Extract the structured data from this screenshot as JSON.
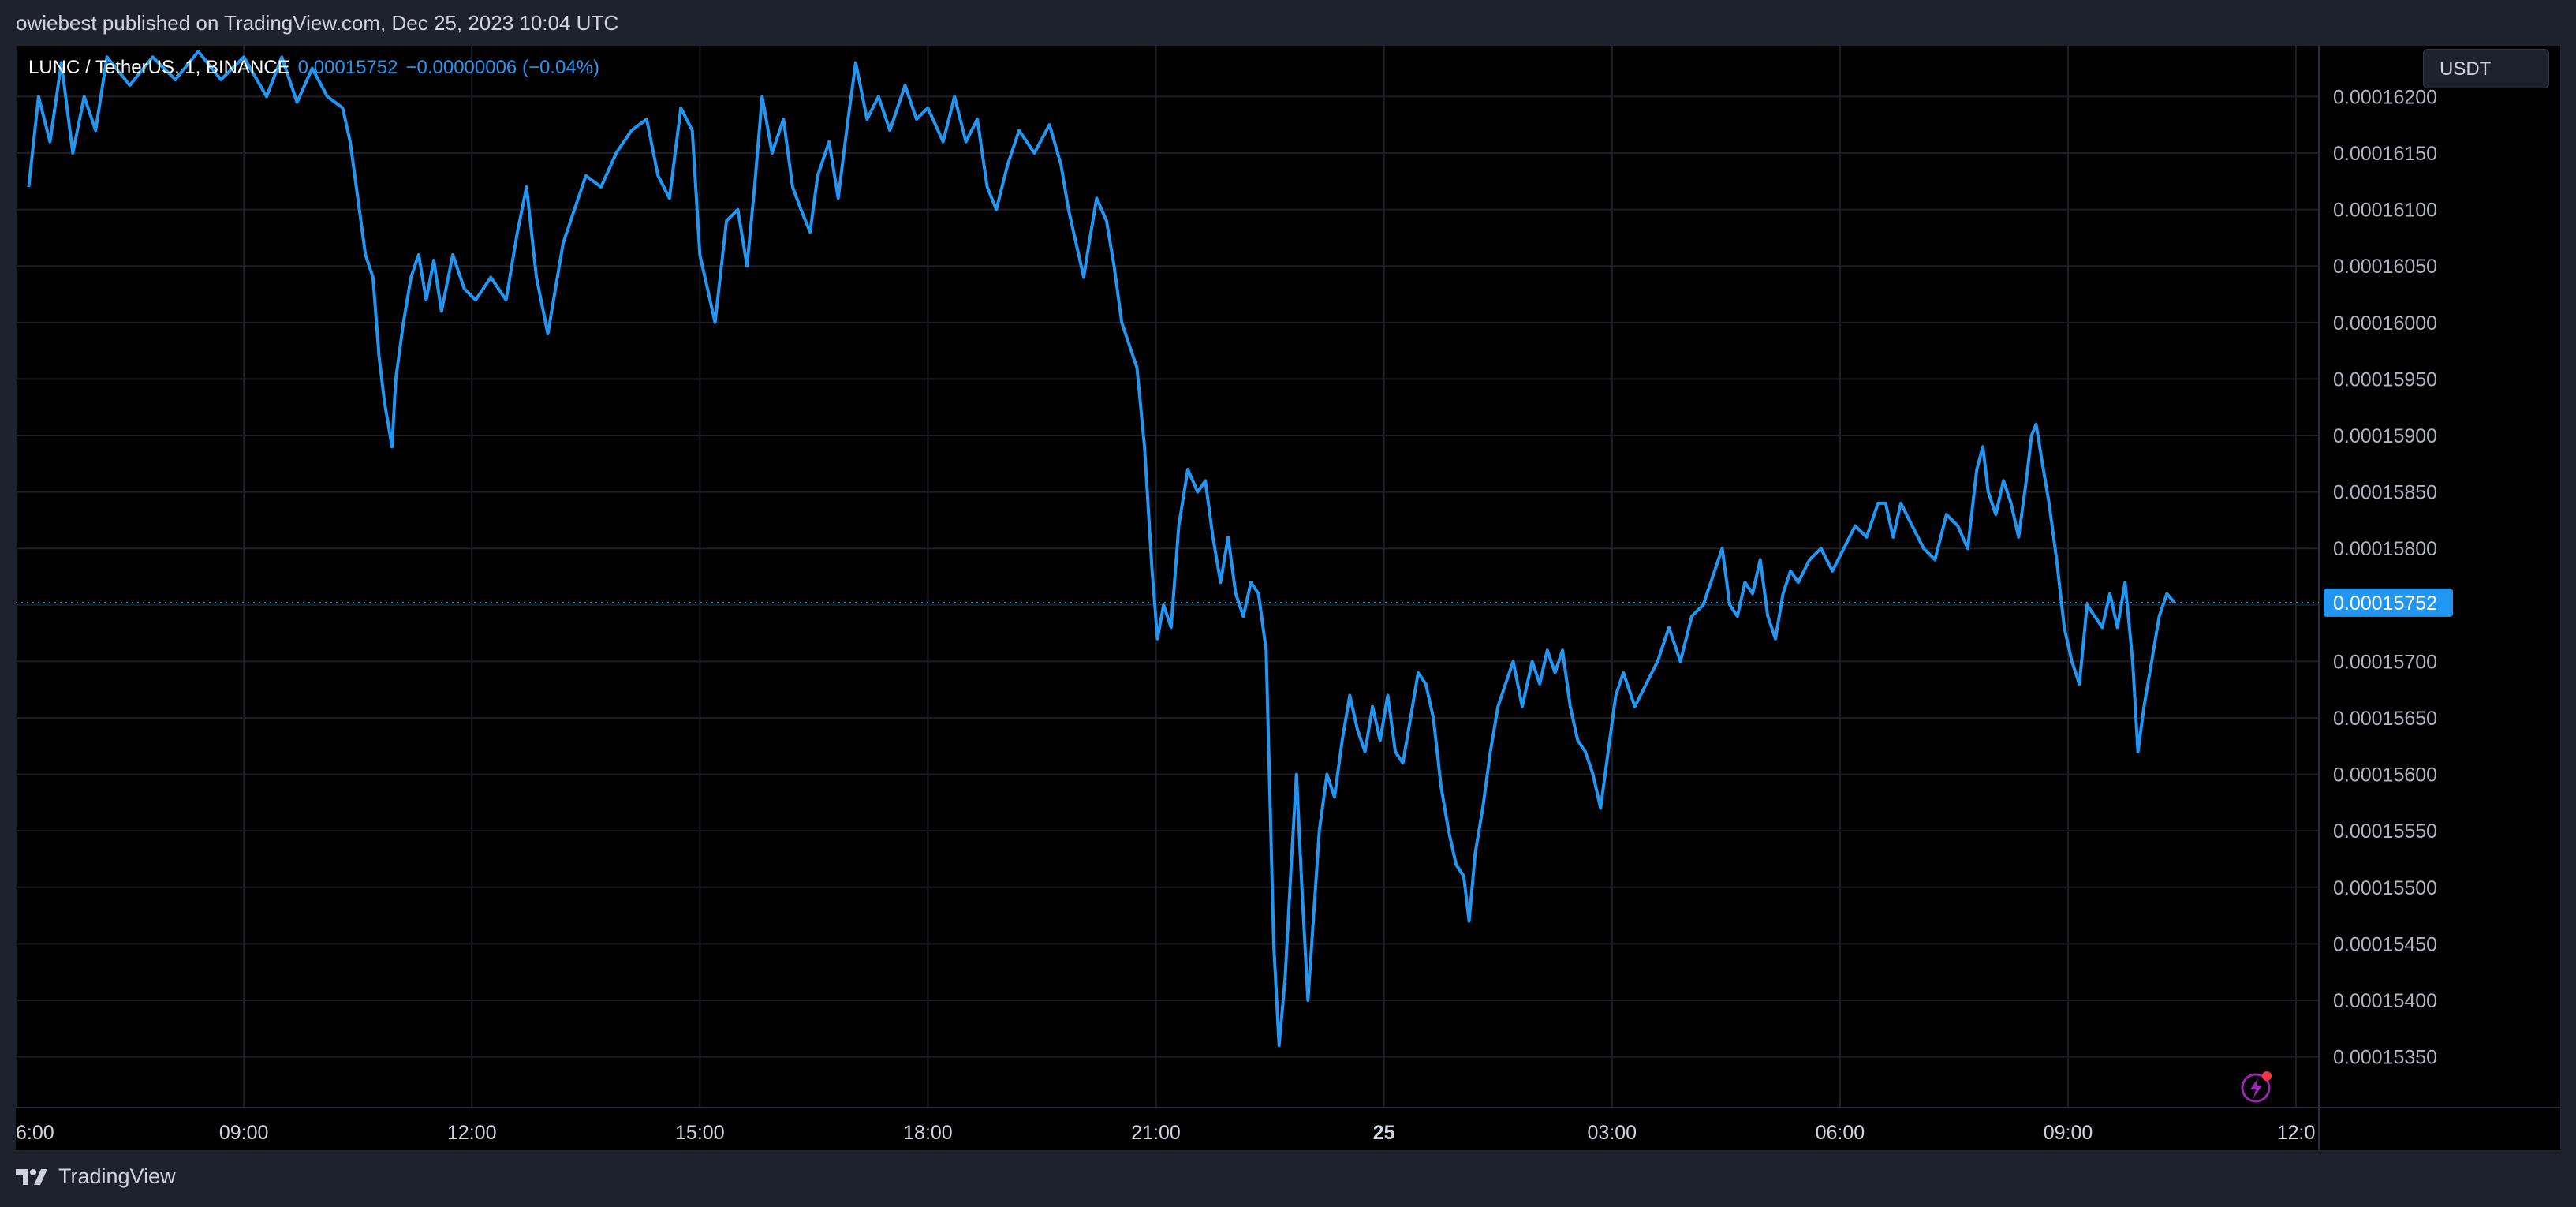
{
  "header": {
    "published_line": "owiebest published on TradingView.com, Dec 25, 2023 10:04 UTC"
  },
  "legend": {
    "symbol": "LUNC / TetherUS, 1, BINANCE",
    "last": "0.00015752",
    "change": "−0.00000006 (−0.04%)"
  },
  "currency_button": {
    "label": "USDT"
  },
  "footer": {
    "brand": "TradingView"
  },
  "icons": {
    "brand_logo": "tradingview-logo-icon",
    "alert": "lightning-bolt-icon"
  },
  "colors": {
    "line": "#2196f3",
    "background": "#000000",
    "grid": "#1c1f26",
    "last_badge": "#2196f3"
  },
  "chart_data": {
    "type": "line",
    "title": "",
    "xlabel": "",
    "ylabel": "",
    "x_ticks": [
      {
        "t": 0,
        "label": "6:00"
      },
      {
        "t": 3,
        "label": "09:00"
      },
      {
        "t": 6,
        "label": "12:00"
      },
      {
        "t": 9,
        "label": "15:00"
      },
      {
        "t": 12,
        "label": "18:00"
      },
      {
        "t": 15,
        "label": "21:00"
      },
      {
        "t": 18,
        "label": "25",
        "bold": true
      },
      {
        "t": 21,
        "label": "03:00"
      },
      {
        "t": 24,
        "label": "06:00"
      },
      {
        "t": 27,
        "label": "09:00"
      },
      {
        "t": 30,
        "label": "12:0"
      }
    ],
    "x_unit": "hours since Dec 24 06:00 UTC",
    "xlim": [
      0,
      30.3
    ],
    "ylim": [
      0.00015305,
      0.00016245
    ],
    "y_ticks": [
      "0.00016200",
      "0.00016150",
      "0.00016100",
      "0.00016050",
      "0.00016000",
      "0.00015950",
      "0.00015900",
      "0.00015850",
      "0.00015800",
      "0.00015750",
      "0.00015700",
      "0.00015650",
      "0.00015600",
      "0.00015550",
      "0.00015500",
      "0.00015450",
      "0.00015400",
      "0.00015350"
    ],
    "last_price": 0.00015752,
    "last_price_label": "0.00015752",
    "grid": true,
    "series": [
      {
        "name": "",
        "points": [
          [
            0.17,
            0.0001612
          ],
          [
            0.3,
            0.000162
          ],
          [
            0.45,
            0.0001616
          ],
          [
            0.6,
            0.0001623
          ],
          [
            0.75,
            0.0001615
          ],
          [
            0.9,
            0.000162
          ],
          [
            1.05,
            0.0001617
          ],
          [
            1.2,
            0.00016235
          ],
          [
            1.5,
            0.0001621
          ],
          [
            1.8,
            0.00016235
          ],
          [
            2.1,
            0.00016215
          ],
          [
            2.4,
            0.0001624
          ],
          [
            2.7,
            0.00016215
          ],
          [
            3.0,
            0.00016235
          ],
          [
            3.3,
            0.000162
          ],
          [
            3.5,
            0.00016235
          ],
          [
            3.7,
            0.00016195
          ],
          [
            3.9,
            0.00016225
          ],
          [
            4.1,
            0.000162
          ],
          [
            4.3,
            0.0001619
          ],
          [
            4.4,
            0.0001616
          ],
          [
            4.5,
            0.0001611
          ],
          [
            4.6,
            0.0001606
          ],
          [
            4.7,
            0.0001604
          ],
          [
            4.78,
            0.0001597
          ],
          [
            4.85,
            0.0001593
          ],
          [
            4.95,
            0.0001589
          ],
          [
            5.0,
            0.0001595
          ],
          [
            5.1,
            0.00016
          ],
          [
            5.2,
            0.0001604
          ],
          [
            5.3,
            0.0001606
          ],
          [
            5.4,
            0.0001602
          ],
          [
            5.5,
            0.00016055
          ],
          [
            5.6,
            0.0001601
          ],
          [
            5.75,
            0.0001606
          ],
          [
            5.9,
            0.0001603
          ],
          [
            6.05,
            0.0001602
          ],
          [
            6.25,
            0.0001604
          ],
          [
            6.45,
            0.0001602
          ],
          [
            6.6,
            0.0001608
          ],
          [
            6.72,
            0.0001612
          ],
          [
            6.85,
            0.0001604
          ],
          [
            7.0,
            0.0001599
          ],
          [
            7.2,
            0.0001607
          ],
          [
            7.35,
            0.000161
          ],
          [
            7.5,
            0.0001613
          ],
          [
            7.7,
            0.0001612
          ],
          [
            7.9,
            0.0001615
          ],
          [
            8.1,
            0.0001617
          ],
          [
            8.3,
            0.0001618
          ],
          [
            8.45,
            0.0001613
          ],
          [
            8.6,
            0.0001611
          ],
          [
            8.75,
            0.0001619
          ],
          [
            8.9,
            0.0001617
          ],
          [
            9.0,
            0.0001606
          ],
          [
            9.1,
            0.0001603
          ],
          [
            9.2,
            0.00016
          ],
          [
            9.35,
            0.0001609
          ],
          [
            9.5,
            0.000161
          ],
          [
            9.62,
            0.0001605
          ],
          [
            9.72,
            0.0001612
          ],
          [
            9.82,
            0.000162
          ],
          [
            9.95,
            0.0001615
          ],
          [
            10.1,
            0.0001618
          ],
          [
            10.22,
            0.0001612
          ],
          [
            10.33,
            0.000161
          ],
          [
            10.45,
            0.0001608
          ],
          [
            10.55,
            0.0001613
          ],
          [
            10.7,
            0.0001616
          ],
          [
            10.82,
            0.0001611
          ],
          [
            10.95,
            0.0001618
          ],
          [
            11.05,
            0.0001623
          ],
          [
            11.2,
            0.0001618
          ],
          [
            11.35,
            0.000162
          ],
          [
            11.5,
            0.0001617
          ],
          [
            11.7,
            0.0001621
          ],
          [
            11.85,
            0.0001618
          ],
          [
            12.0,
            0.0001619
          ],
          [
            12.2,
            0.0001616
          ],
          [
            12.35,
            0.000162
          ],
          [
            12.5,
            0.0001616
          ],
          [
            12.65,
            0.0001618
          ],
          [
            12.78,
            0.0001612
          ],
          [
            12.9,
            0.000161
          ],
          [
            13.05,
            0.0001614
          ],
          [
            13.2,
            0.0001617
          ],
          [
            13.4,
            0.0001615
          ],
          [
            13.6,
            0.00016175
          ],
          [
            13.75,
            0.0001614
          ],
          [
            13.85,
            0.000161
          ],
          [
            13.95,
            0.0001607
          ],
          [
            14.05,
            0.0001604
          ],
          [
            14.12,
            0.0001607
          ],
          [
            14.22,
            0.0001611
          ],
          [
            14.35,
            0.0001609
          ],
          [
            14.45,
            0.0001605
          ],
          [
            14.55,
            0.00016
          ],
          [
            14.65,
            0.0001598
          ],
          [
            14.75,
            0.0001596
          ],
          [
            14.85,
            0.0001589
          ],
          [
            14.95,
            0.0001578
          ],
          [
            15.02,
            0.0001572
          ],
          [
            15.1,
            0.0001575
          ],
          [
            15.2,
            0.0001573
          ],
          [
            15.3,
            0.0001582
          ],
          [
            15.42,
            0.0001587
          ],
          [
            15.55,
            0.0001585
          ],
          [
            15.65,
            0.0001586
          ],
          [
            15.75,
            0.0001581
          ],
          [
            15.85,
            0.0001577
          ],
          [
            15.95,
            0.0001581
          ],
          [
            16.05,
            0.0001576
          ],
          [
            16.15,
            0.0001574
          ],
          [
            16.25,
            0.0001577
          ],
          [
            16.35,
            0.0001576
          ],
          [
            16.45,
            0.0001571
          ],
          [
            16.5,
            0.0001558
          ],
          [
            16.55,
            0.0001545
          ],
          [
            16.62,
            0.0001536
          ],
          [
            16.7,
            0.0001542
          ],
          [
            16.78,
            0.0001552
          ],
          [
            16.85,
            0.000156
          ],
          [
            16.92,
            0.000155
          ],
          [
            17.0,
            0.000154
          ],
          [
            17.08,
            0.0001548
          ],
          [
            17.15,
            0.0001555
          ],
          [
            17.25,
            0.000156
          ],
          [
            17.35,
            0.0001558
          ],
          [
            17.45,
            0.0001563
          ],
          [
            17.55,
            0.0001567
          ],
          [
            17.65,
            0.0001564
          ],
          [
            17.75,
            0.0001562
          ],
          [
            17.85,
            0.0001566
          ],
          [
            17.95,
            0.0001563
          ],
          [
            18.05,
            0.0001567
          ],
          [
            18.15,
            0.0001562
          ],
          [
            18.25,
            0.0001561
          ],
          [
            18.35,
            0.0001565
          ],
          [
            18.45,
            0.0001569
          ],
          [
            18.55,
            0.0001568
          ],
          [
            18.65,
            0.0001565
          ],
          [
            18.75,
            0.0001559
          ],
          [
            18.85,
            0.0001555
          ],
          [
            18.95,
            0.0001552
          ],
          [
            19.05,
            0.0001551
          ],
          [
            19.12,
            0.0001547
          ],
          [
            19.2,
            0.0001553
          ],
          [
            19.3,
            0.0001557
          ],
          [
            19.4,
            0.0001562
          ],
          [
            19.5,
            0.0001566
          ],
          [
            19.6,
            0.0001568
          ],
          [
            19.7,
            0.000157
          ],
          [
            19.82,
            0.0001566
          ],
          [
            19.95,
            0.000157
          ],
          [
            20.05,
            0.0001568
          ],
          [
            20.15,
            0.0001571
          ],
          [
            20.25,
            0.0001569
          ],
          [
            20.35,
            0.0001571
          ],
          [
            20.45,
            0.0001566
          ],
          [
            20.55,
            0.0001563
          ],
          [
            20.65,
            0.0001562
          ],
          [
            20.75,
            0.000156
          ],
          [
            20.85,
            0.0001557
          ],
          [
            20.95,
            0.0001562
          ],
          [
            21.05,
            0.0001567
          ],
          [
            21.15,
            0.0001569
          ],
          [
            21.3,
            0.0001566
          ],
          [
            21.45,
            0.0001568
          ],
          [
            21.6,
            0.000157
          ],
          [
            21.75,
            0.0001573
          ],
          [
            21.9,
            0.000157
          ],
          [
            22.05,
            0.0001574
          ],
          [
            22.2,
            0.0001575
          ],
          [
            22.35,
            0.0001578
          ],
          [
            22.45,
            0.000158
          ],
          [
            22.55,
            0.0001575
          ],
          [
            22.65,
            0.0001574
          ],
          [
            22.75,
            0.0001577
          ],
          [
            22.85,
            0.0001576
          ],
          [
            22.95,
            0.0001579
          ],
          [
            23.05,
            0.0001574
          ],
          [
            23.15,
            0.0001572
          ],
          [
            23.25,
            0.0001576
          ],
          [
            23.35,
            0.0001578
          ],
          [
            23.45,
            0.0001577
          ],
          [
            23.6,
            0.0001579
          ],
          [
            23.75,
            0.000158
          ],
          [
            23.9,
            0.0001578
          ],
          [
            24.05,
            0.000158
          ],
          [
            24.2,
            0.0001582
          ],
          [
            24.35,
            0.0001581
          ],
          [
            24.5,
            0.0001584
          ],
          [
            24.6,
            0.0001584
          ],
          [
            24.7,
            0.0001581
          ],
          [
            24.8,
            0.0001584
          ],
          [
            24.95,
            0.0001582
          ],
          [
            25.1,
            0.000158
          ],
          [
            25.25,
            0.0001579
          ],
          [
            25.4,
            0.0001583
          ],
          [
            25.55,
            0.0001582
          ],
          [
            25.68,
            0.000158
          ],
          [
            25.8,
            0.0001587
          ],
          [
            25.88,
            0.0001589
          ],
          [
            25.95,
            0.0001585
          ],
          [
            26.05,
            0.0001583
          ],
          [
            26.15,
            0.0001586
          ],
          [
            26.25,
            0.0001584
          ],
          [
            26.35,
            0.0001581
          ],
          [
            26.45,
            0.0001586
          ],
          [
            26.52,
            0.000159
          ],
          [
            26.58,
            0.0001591
          ],
          [
            26.65,
            0.0001588
          ],
          [
            26.75,
            0.0001584
          ],
          [
            26.85,
            0.0001579
          ],
          [
            26.95,
            0.0001573
          ],
          [
            27.05,
            0.000157
          ],
          [
            27.15,
            0.0001568
          ],
          [
            27.25,
            0.0001575
          ],
          [
            27.35,
            0.0001574
          ],
          [
            27.45,
            0.0001573
          ],
          [
            27.55,
            0.0001576
          ],
          [
            27.65,
            0.0001573
          ],
          [
            27.75,
            0.0001577
          ],
          [
            27.85,
            0.000157
          ],
          [
            27.92,
            0.0001562
          ],
          [
            28.0,
            0.0001566
          ],
          [
            28.1,
            0.000157
          ],
          [
            28.2,
            0.0001574
          ],
          [
            28.3,
            0.0001576
          ],
          [
            28.4,
            0.00015752
          ]
        ]
      }
    ]
  }
}
